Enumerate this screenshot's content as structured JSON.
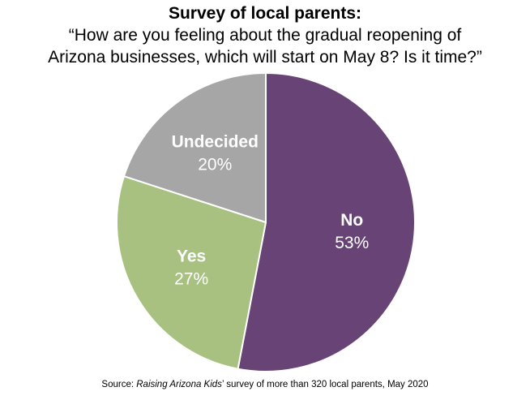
{
  "title": "Survey of local parents:",
  "subtitle_lines": [
    "“How are you feeling about the gradual reopening of",
    "Arizona businesses, which will start on May 8? Is it time?”"
  ],
  "source": {
    "prefix": "Source: ",
    "italic": "Raising Arizona Kids",
    "suffix": "’ survey of more than 320 local parents, May 2020"
  },
  "chart_data": {
    "type": "pie",
    "title": "Survey of local parents:",
    "start": "12 o'clock",
    "direction": "clockwise",
    "slices": [
      {
        "label": "No",
        "value": 53,
        "value_label": "53%",
        "color": "#674475"
      },
      {
        "label": "Yes",
        "value": 27,
        "value_label": "27%",
        "color": "#a8c180"
      },
      {
        "label": "Undecided",
        "value": 20,
        "value_label": "20%",
        "color": "#a6a6a6"
      }
    ],
    "label_color": "#ffffff",
    "slice_border_color": "#ffffff"
  }
}
